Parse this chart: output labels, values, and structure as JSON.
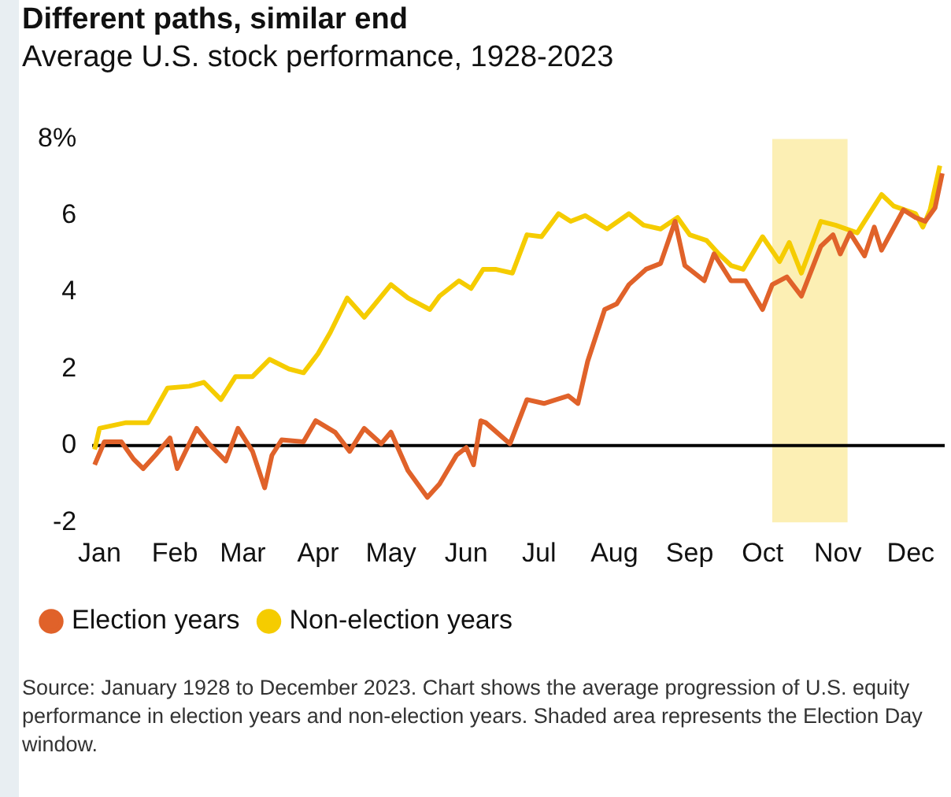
{
  "chart_data": {
    "type": "line",
    "title": "Different paths, similar end",
    "subtitle": "Average U.S. stock performance, 1928-2023",
    "xlim": [
      "--01-12",
      "--12-29"
    ],
    "xticks": [
      {
        "value": "--01-15",
        "label": "Jan"
      },
      {
        "value": "--02-15",
        "label": "Feb"
      },
      {
        "value": "--03-15",
        "label": "Mar"
      },
      {
        "value": "--04-15",
        "label": "Apr"
      },
      {
        "value": "--05-15",
        "label": "May"
      },
      {
        "value": "--06-15",
        "label": "Jun"
      },
      {
        "value": "--07-15",
        "label": "Jul"
      },
      {
        "value": "--08-15",
        "label": "Aug"
      },
      {
        "value": "--09-15",
        "label": "Sep"
      },
      {
        "value": "--10-15",
        "label": "Oct"
      },
      {
        "value": "--11-15",
        "label": "Nov"
      },
      {
        "value": "--12-15",
        "label": "Dec"
      }
    ],
    "ylim": [
      -2,
      8
    ],
    "yticks": [
      -2,
      0,
      2,
      4,
      6,
      {
        "value": 8,
        "label": "8%"
      }
    ],
    "grid": false,
    "legend": "bottom left",
    "marker": "none",
    "line_style": "solid",
    "ref_lines": [
      {
        "axis": "y",
        "value": 0,
        "color": "#000000"
      }
    ],
    "bands": [
      {
        "axis": "x",
        "from": "--10-19",
        "to": "--11-19",
        "color": "#fcefb4"
      }
    ],
    "series": [
      {
        "name": "Election years",
        "color": "#e0622a",
        "x": [
          "--01-13",
          "--01-17",
          "--01-24",
          "--01-29",
          "--02-02",
          "--02-07",
          "--02-13",
          "--02-16",
          "--02-24",
          "--03-01",
          "--03-08",
          "--03-13",
          "--03-19",
          "--03-24",
          "--03-27",
          "--03-31",
          "--04-09",
          "--04-14",
          "--04-22",
          "--04-28",
          "--05-04",
          "--05-11",
          "--05-15",
          "--05-22",
          "--05-30",
          "--06-04",
          "--06-11",
          "--06-15",
          "--06-18",
          "--06-21",
          "--06-23",
          "--07-03",
          "--07-10",
          "--07-17",
          "--07-27",
          "--07-31",
          "--08-04",
          "--08-11",
          "--08-16",
          "--08-21",
          "--08-28",
          "--09-03",
          "--09-09",
          "--09-13",
          "--09-21",
          "--09-25",
          "--10-02",
          "--10-08",
          "--10-15",
          "--10-19",
          "--10-25",
          "--10-31",
          "--11-08",
          "--11-13",
          "--11-16",
          "--11-20",
          "--11-26",
          "--11-30",
          "--12-03",
          "--12-06",
          "--12-12",
          "--12-17",
          "--12-21",
          "--12-25",
          "--12-28"
        ],
        "values": [
          -0.5,
          0.1,
          0.1,
          -0.35,
          -0.6,
          -0.25,
          0.2,
          -0.6,
          0.45,
          0.05,
          -0.4,
          0.45,
          -0.15,
          -1.1,
          -0.25,
          0.15,
          0.1,
          0.65,
          0.35,
          -0.15,
          0.45,
          0.05,
          0.35,
          -0.65,
          -1.35,
          -1.0,
          -0.25,
          -0.05,
          -0.5,
          0.65,
          0.6,
          0.05,
          1.2,
          1.1,
          1.3,
          1.1,
          2.2,
          3.55,
          3.7,
          4.2,
          4.6,
          4.75,
          5.85,
          4.7,
          4.3,
          5.0,
          4.3,
          4.3,
          3.55,
          4.2,
          4.4,
          3.9,
          5.2,
          5.5,
          5.0,
          5.55,
          4.95,
          5.7,
          5.1,
          5.45,
          6.15,
          5.95,
          5.85,
          6.2,
          7.1
        ]
      },
      {
        "name": "Non-election years",
        "color": "#f5cc00",
        "x": [
          "--01-13",
          "--01-15",
          "--01-26",
          "--02-04",
          "--02-12",
          "--02-21",
          "--02-27",
          "--03-06",
          "--03-12",
          "--03-19",
          "--03-26",
          "--04-03",
          "--04-09",
          "--04-15",
          "--04-20",
          "--04-27",
          "--05-04",
          "--05-15",
          "--05-22",
          "--05-31",
          "--06-04",
          "--06-12",
          "--06-17",
          "--06-22",
          "--06-27",
          "--07-04",
          "--07-10",
          "--07-16",
          "--07-23",
          "--07-28",
          "--08-03",
          "--08-12",
          "--08-21",
          "--08-27",
          "--09-03",
          "--09-10",
          "--09-15",
          "--09-22",
          "--09-27",
          "--10-02",
          "--10-07",
          "--10-15",
          "--10-22",
          "--10-26",
          "--10-31",
          "--11-08",
          "--11-14",
          "--11-23",
          "--12-03",
          "--12-08",
          "--12-17",
          "--12-20",
          "--12-23",
          "--12-27"
        ],
        "values": [
          -0.1,
          0.45,
          0.6,
          0.6,
          1.5,
          1.55,
          1.65,
          1.2,
          1.8,
          1.8,
          2.25,
          2.0,
          1.9,
          2.4,
          2.95,
          3.85,
          3.35,
          4.2,
          3.85,
          3.55,
          3.9,
          4.3,
          4.1,
          4.6,
          4.6,
          4.5,
          5.5,
          5.45,
          6.05,
          5.85,
          6.0,
          5.65,
          6.05,
          5.75,
          5.65,
          5.95,
          5.5,
          5.35,
          5.0,
          4.7,
          4.6,
          5.45,
          4.8,
          5.3,
          4.5,
          5.85,
          5.75,
          5.55,
          6.55,
          6.25,
          6.05,
          5.7,
          6.15,
          7.3
        ]
      }
    ],
    "annotations": [
      "Source: January 1928 to December 2023. Chart shows the average progression of U.S. equity performance in election years and non-election years. Shaded area represents the Election Day window."
    ]
  }
}
